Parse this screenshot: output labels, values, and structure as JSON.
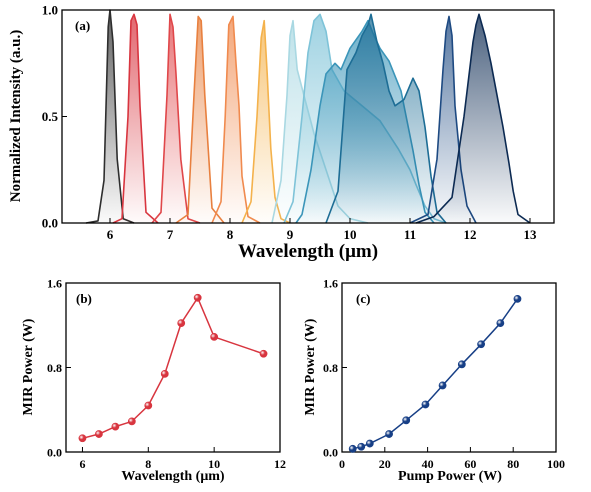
{
  "panels": {
    "a": {
      "label": "(a)",
      "type": "line",
      "xlabel": "Wavelength (μm)",
      "ylabel": "Normalized Intensity (a.u.)",
      "xlim": [
        5.2,
        13.4
      ],
      "ylim": [
        0,
        1.0
      ],
      "xticks": [
        "6",
        "7",
        "8",
        "9",
        "10",
        "11",
        "12",
        "13"
      ],
      "yticks": [
        "0.0",
        "0.5",
        "1.0"
      ],
      "series": [
        {
          "color": "#2e2e2e",
          "points": [
            [
              5.6,
              0
            ],
            [
              5.8,
              0.01
            ],
            [
              5.9,
              0.2
            ],
            [
              5.97,
              0.92
            ],
            [
              6.0,
              1.0
            ],
            [
              6.05,
              0.85
            ],
            [
              6.12,
              0.3
            ],
            [
              6.22,
              0.02
            ],
            [
              6.4,
              0
            ]
          ]
        },
        {
          "color": "#d8353f",
          "points": [
            [
              6.05,
              0
            ],
            [
              6.2,
              0.02
            ],
            [
              6.3,
              0.5
            ],
            [
              6.35,
              0.95
            ],
            [
              6.4,
              0.98
            ],
            [
              6.45,
              0.93
            ],
            [
              6.5,
              0.55
            ],
            [
              6.6,
              0.05
            ],
            [
              6.8,
              0
            ]
          ]
        },
        {
          "color": "#e0474a",
          "points": [
            [
              6.7,
              0
            ],
            [
              6.85,
              0.05
            ],
            [
              6.95,
              0.6
            ],
            [
              7.0,
              0.98
            ],
            [
              7.05,
              0.92
            ],
            [
              7.1,
              0.7
            ],
            [
              7.18,
              0.3
            ],
            [
              7.3,
              0.02
            ],
            [
              7.5,
              0
            ]
          ]
        },
        {
          "color": "#e8803f",
          "points": [
            [
              7.1,
              0
            ],
            [
              7.3,
              0.04
            ],
            [
              7.4,
              0.6
            ],
            [
              7.47,
              0.97
            ],
            [
              7.52,
              0.95
            ],
            [
              7.58,
              0.6
            ],
            [
              7.7,
              0.07
            ],
            [
              7.9,
              0
            ]
          ]
        },
        {
          "color": "#f08a4e",
          "points": [
            [
              7.7,
              0
            ],
            [
              7.85,
              0.1
            ],
            [
              7.92,
              0.5
            ],
            [
              7.98,
              0.93
            ],
            [
              8.05,
              0.97
            ],
            [
              8.1,
              0.75
            ],
            [
              8.15,
              0.55
            ],
            [
              8.2,
              0.22
            ],
            [
              8.3,
              0.03
            ],
            [
              8.5,
              0
            ]
          ]
        },
        {
          "color": "#f4b24c",
          "points": [
            [
              8.2,
              0
            ],
            [
              8.35,
              0.1
            ],
            [
              8.45,
              0.5
            ],
            [
              8.52,
              0.87
            ],
            [
              8.57,
              0.95
            ],
            [
              8.62,
              0.7
            ],
            [
              8.68,
              0.35
            ],
            [
              8.75,
              0.12
            ],
            [
              8.85,
              0.02
            ],
            [
              9.0,
              0
            ]
          ]
        },
        {
          "color": "#a9d8e2",
          "points": [
            [
              8.7,
              0
            ],
            [
              8.85,
              0.2
            ],
            [
              8.95,
              0.6
            ],
            [
              9.0,
              0.88
            ],
            [
              9.05,
              0.95
            ],
            [
              9.12,
              0.72
            ],
            [
              9.25,
              0.58
            ],
            [
              9.4,
              0.42
            ],
            [
              9.6,
              0.25
            ],
            [
              9.8,
              0.08
            ],
            [
              10.0,
              0.02
            ],
            [
              10.3,
              0
            ]
          ]
        },
        {
          "color": "#7ec3d8",
          "points": [
            [
              8.9,
              0
            ],
            [
              9.05,
              0.1
            ],
            [
              9.2,
              0.5
            ],
            [
              9.3,
              0.8
            ],
            [
              9.4,
              0.95
            ],
            [
              9.5,
              0.98
            ],
            [
              9.6,
              0.9
            ],
            [
              9.7,
              0.72
            ],
            [
              9.9,
              0.62
            ],
            [
              10.2,
              0.55
            ],
            [
              10.5,
              0.48
            ],
            [
              10.8,
              0.35
            ],
            [
              11.0,
              0.25
            ],
            [
              11.1,
              0.18
            ],
            [
              11.25,
              0.08
            ],
            [
              11.4,
              0.02
            ],
            [
              11.6,
              0
            ]
          ]
        },
        {
          "color": "#3b95b9",
          "points": [
            [
              9.1,
              0
            ],
            [
              9.2,
              0.04
            ],
            [
              9.35,
              0.25
            ],
            [
              9.5,
              0.55
            ],
            [
              9.6,
              0.7
            ],
            [
              9.75,
              0.75
            ],
            [
              9.85,
              0.72
            ],
            [
              10.0,
              0.82
            ],
            [
              10.2,
              0.9
            ],
            [
              10.3,
              0.95
            ],
            [
              10.4,
              0.88
            ],
            [
              10.5,
              0.82
            ],
            [
              10.65,
              0.76
            ],
            [
              10.85,
              0.62
            ],
            [
              10.95,
              0.48
            ],
            [
              11.05,
              0.34
            ],
            [
              11.15,
              0.18
            ],
            [
              11.25,
              0.05
            ],
            [
              11.4,
              0
            ]
          ]
        },
        {
          "color": "#1d6d95",
          "points": [
            [
              9.6,
              0
            ],
            [
              9.8,
              0.15
            ],
            [
              9.95,
              0.72
            ],
            [
              10.1,
              0.8
            ],
            [
              10.2,
              0.88
            ],
            [
              10.3,
              0.93
            ],
            [
              10.35,
              0.98
            ],
            [
              10.45,
              0.85
            ],
            [
              10.55,
              0.75
            ],
            [
              10.65,
              0.62
            ],
            [
              10.75,
              0.55
            ],
            [
              10.9,
              0.58
            ],
            [
              11.05,
              0.68
            ],
            [
              11.15,
              0.62
            ],
            [
              11.25,
              0.45
            ],
            [
              11.35,
              0.22
            ],
            [
              11.45,
              0.05
            ],
            [
              11.6,
              0
            ]
          ]
        },
        {
          "color": "#1e4a82",
          "points": [
            [
              11.0,
              0
            ],
            [
              11.3,
              0.04
            ],
            [
              11.45,
              0.3
            ],
            [
              11.55,
              0.72
            ],
            [
              11.6,
              0.9
            ],
            [
              11.65,
              0.97
            ],
            [
              11.7,
              0.88
            ],
            [
              11.75,
              0.55
            ],
            [
              11.85,
              0.25
            ],
            [
              11.95,
              0.08
            ],
            [
              12.1,
              0
            ]
          ]
        },
        {
          "color": "#0c2a52",
          "points": [
            [
              11.1,
              0
            ],
            [
              11.4,
              0.03
            ],
            [
              11.7,
              0.12
            ],
            [
              11.9,
              0.5
            ],
            [
              12.05,
              0.85
            ],
            [
              12.1,
              0.93
            ],
            [
              12.15,
              0.98
            ],
            [
              12.25,
              0.88
            ],
            [
              12.35,
              0.75
            ],
            [
              12.45,
              0.6
            ],
            [
              12.55,
              0.45
            ],
            [
              12.65,
              0.28
            ],
            [
              12.72,
              0.15
            ],
            [
              12.8,
              0.04
            ],
            [
              13.0,
              0
            ]
          ]
        }
      ]
    },
    "b": {
      "label": "(b)",
      "type": "line",
      "xlabel": "Wavelength (μm)",
      "ylabel": "MIR Power (W)",
      "xlim": [
        5.5,
        12
      ],
      "ylim": [
        0,
        1.6
      ],
      "xticks": [
        "6",
        "8",
        "10",
        "12"
      ],
      "yticks": [
        "0.0",
        "0.8",
        "1.6"
      ],
      "color": "#d8353f",
      "x": [
        6.0,
        6.5,
        7.0,
        7.5,
        8.0,
        8.5,
        9.0,
        9.5,
        10.0,
        11.5
      ],
      "y": [
        0.13,
        0.17,
        0.24,
        0.29,
        0.44,
        0.74,
        1.22,
        1.46,
        1.09,
        0.93
      ]
    },
    "c": {
      "label": "(c)",
      "type": "line",
      "xlabel": "Pump Power (W)",
      "ylabel": "MIR Power (W)",
      "xlim": [
        0,
        100
      ],
      "ylim": [
        0,
        1.6
      ],
      "xticks": [
        "0",
        "20",
        "40",
        "60",
        "80",
        "100"
      ],
      "yticks": [
        "0.0",
        "0.8",
        "1.6"
      ],
      "color": "#173f86",
      "x": [
        5,
        9,
        13,
        22,
        30,
        39,
        47,
        56,
        65,
        74,
        82
      ],
      "y": [
        0.03,
        0.05,
        0.08,
        0.17,
        0.3,
        0.45,
        0.63,
        0.83,
        1.02,
        1.22,
        1.45
      ]
    }
  }
}
